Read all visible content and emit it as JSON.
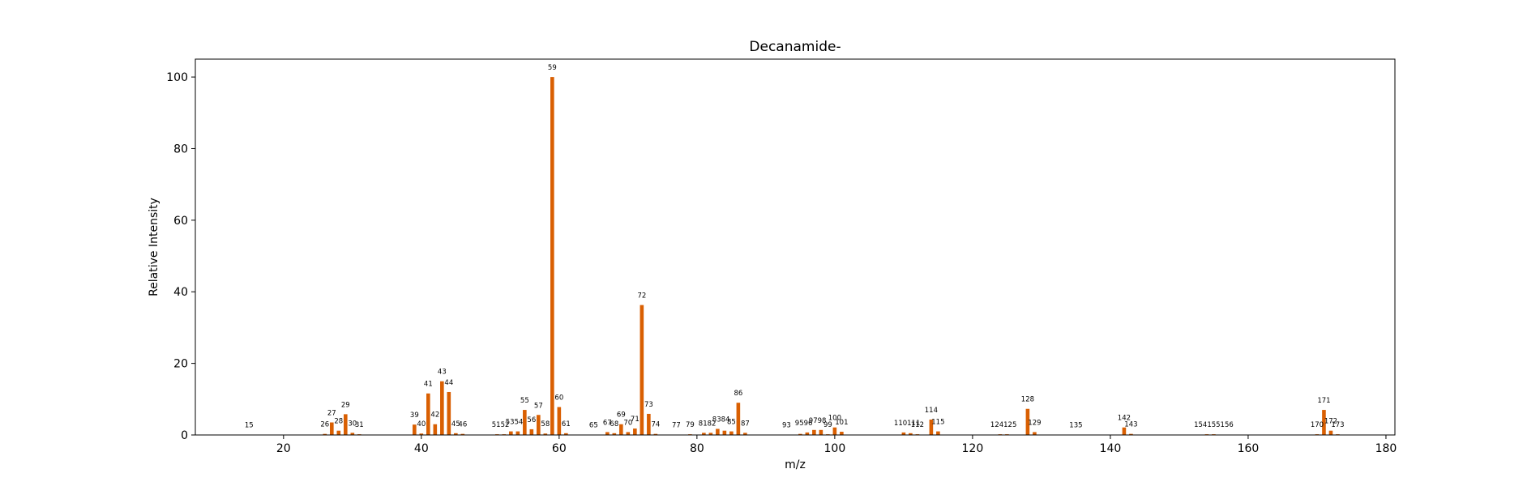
{
  "chart_data": {
    "type": "bar",
    "title": "Decanamide-",
    "xlabel": "m/z",
    "ylabel": "Relative Intensity",
    "xlim": [
      7.2,
      181.3
    ],
    "ylim": [
      0,
      105
    ],
    "xticks": [
      20,
      40,
      60,
      80,
      100,
      120,
      140,
      160,
      180
    ],
    "yticks": [
      0,
      20,
      40,
      60,
      80,
      100
    ],
    "bar_color": "#d95f02",
    "grid": false,
    "legend": "none",
    "peaks": [
      {
        "mz": 15,
        "intensity": 0.1
      },
      {
        "mz": 26,
        "intensity": 0.3
      },
      {
        "mz": 27,
        "intensity": 3.5
      },
      {
        "mz": 28,
        "intensity": 1.2
      },
      {
        "mz": 29,
        "intensity": 5.8
      },
      {
        "mz": 30,
        "intensity": 0.6
      },
      {
        "mz": 31,
        "intensity": 0.2
      },
      {
        "mz": 39,
        "intensity": 2.9
      },
      {
        "mz": 40,
        "intensity": 0.4
      },
      {
        "mz": 41,
        "intensity": 11.6
      },
      {
        "mz": 42,
        "intensity": 3.0
      },
      {
        "mz": 43,
        "intensity": 15.0
      },
      {
        "mz": 44,
        "intensity": 12.0
      },
      {
        "mz": 45,
        "intensity": 0.5
      },
      {
        "mz": 46,
        "intensity": 0.3
      },
      {
        "mz": 51,
        "intensity": 0.2
      },
      {
        "mz": 52,
        "intensity": 0.2
      },
      {
        "mz": 53,
        "intensity": 1.0
      },
      {
        "mz": 54,
        "intensity": 1.0
      },
      {
        "mz": 55,
        "intensity": 7.0
      },
      {
        "mz": 56,
        "intensity": 1.6
      },
      {
        "mz": 57,
        "intensity": 5.6
      },
      {
        "mz": 58,
        "intensity": 0.4
      },
      {
        "mz": 59,
        "intensity": 100
      },
      {
        "mz": 60,
        "intensity": 7.8
      },
      {
        "mz": 61,
        "intensity": 0.5
      },
      {
        "mz": 65,
        "intensity": 0.1
      },
      {
        "mz": 67,
        "intensity": 0.8
      },
      {
        "mz": 68,
        "intensity": 0.5
      },
      {
        "mz": 69,
        "intensity": 3.0
      },
      {
        "mz": 70,
        "intensity": 0.8
      },
      {
        "mz": 71,
        "intensity": 1.8
      },
      {
        "mz": 72,
        "intensity": 36.3
      },
      {
        "mz": 73,
        "intensity": 5.9
      },
      {
        "mz": 74,
        "intensity": 0.3
      },
      {
        "mz": 77,
        "intensity": 0.1
      },
      {
        "mz": 79,
        "intensity": 0.2
      },
      {
        "mz": 81,
        "intensity": 0.6
      },
      {
        "mz": 82,
        "intensity": 0.6
      },
      {
        "mz": 83,
        "intensity": 1.7
      },
      {
        "mz": 84,
        "intensity": 1.2
      },
      {
        "mz": 85,
        "intensity": 1.0
      },
      {
        "mz": 86,
        "intensity": 9.0
      },
      {
        "mz": 87,
        "intensity": 0.6
      },
      {
        "mz": 93,
        "intensity": 0.1
      },
      {
        "mz": 95,
        "intensity": 0.3
      },
      {
        "mz": 96,
        "intensity": 0.7
      },
      {
        "mz": 97,
        "intensity": 1.4
      },
      {
        "mz": 98,
        "intensity": 1.4
      },
      {
        "mz": 99,
        "intensity": 0.2
      },
      {
        "mz": 100,
        "intensity": 2.1
      },
      {
        "mz": 101,
        "intensity": 0.9
      },
      {
        "mz": 110,
        "intensity": 0.7
      },
      {
        "mz": 111,
        "intensity": 0.5
      },
      {
        "mz": 112,
        "intensity": 0.2
      },
      {
        "mz": 114,
        "intensity": 4.3
      },
      {
        "mz": 115,
        "intensity": 1.0
      },
      {
        "mz": 124,
        "intensity": 0.2
      },
      {
        "mz": 125,
        "intensity": 0.2
      },
      {
        "mz": 128,
        "intensity": 7.3
      },
      {
        "mz": 129,
        "intensity": 0.8
      },
      {
        "mz": 135,
        "intensity": 0.1
      },
      {
        "mz": 142,
        "intensity": 2.1
      },
      {
        "mz": 143,
        "intensity": 0.3
      },
      {
        "mz": 154,
        "intensity": 0.2
      },
      {
        "mz": 155,
        "intensity": 0.2
      },
      {
        "mz": 156,
        "intensity": 0.1
      },
      {
        "mz": 170,
        "intensity": 0.2
      },
      {
        "mz": 171,
        "intensity": 7.0
      },
      {
        "mz": 172,
        "intensity": 1.2
      },
      {
        "mz": 173,
        "intensity": 0.2
      }
    ],
    "peak_labels": [
      {
        "text": "15",
        "mz": 15,
        "intensity": 0.1
      },
      {
        "text": "26",
        "mz": 26,
        "intensity": 0.3
      },
      {
        "text": "27",
        "mz": 27,
        "intensity": 3.5
      },
      {
        "text": "28",
        "mz": 28,
        "intensity": 1.2
      },
      {
        "text": "29",
        "mz": 29,
        "intensity": 5.8
      },
      {
        "text": "30",
        "mz": 30,
        "intensity": 0.6
      },
      {
        "text": "31",
        "mz": 31,
        "intensity": 0.2
      },
      {
        "text": "39",
        "mz": 39,
        "intensity": 2.9
      },
      {
        "text": "40",
        "mz": 40,
        "intensity": 0.4
      },
      {
        "text": "41",
        "mz": 41,
        "intensity": 11.6
      },
      {
        "text": "42",
        "mz": 42,
        "intensity": 3.0
      },
      {
        "text": "43",
        "mz": 43,
        "intensity": 15.0
      },
      {
        "text": "44",
        "mz": 44,
        "intensity": 12.0
      },
      {
        "text": "45",
        "mz": 45,
        "intensity": 0.5
      },
      {
        "text": "46",
        "mz": 46,
        "intensity": 0.3
      },
      {
        "text": "5152",
        "mz": 51.5,
        "intensity": 0.2
      },
      {
        "text": "5354",
        "mz": 53.5,
        "intensity": 1.0
      },
      {
        "text": "55",
        "mz": 55,
        "intensity": 7.0
      },
      {
        "text": "56",
        "mz": 56,
        "intensity": 1.6
      },
      {
        "text": "57",
        "mz": 57,
        "intensity": 5.6
      },
      {
        "text": "58",
        "mz": 58,
        "intensity": 0.4
      },
      {
        "text": "59",
        "mz": 59,
        "intensity": 100
      },
      {
        "text": "60",
        "mz": 60,
        "intensity": 7.8
      },
      {
        "text": "61",
        "mz": 61,
        "intensity": 0.5
      },
      {
        "text": "65",
        "mz": 65,
        "intensity": 0.1
      },
      {
        "text": "67",
        "mz": 67,
        "intensity": 0.8
      },
      {
        "text": "68",
        "mz": 68,
        "intensity": 0.5
      },
      {
        "text": "69",
        "mz": 69,
        "intensity": 3.0
      },
      {
        "text": "70",
        "mz": 70,
        "intensity": 0.8
      },
      {
        "text": "71",
        "mz": 71,
        "intensity": 1.8
      },
      {
        "text": "72",
        "mz": 72,
        "intensity": 36.3
      },
      {
        "text": "73",
        "mz": 73,
        "intensity": 5.9
      },
      {
        "text": "74",
        "mz": 74,
        "intensity": 0.3
      },
      {
        "text": "77",
        "mz": 77,
        "intensity": 0.1
      },
      {
        "text": "79",
        "mz": 79,
        "intensity": 0.2
      },
      {
        "text": "8182",
        "mz": 81.5,
        "intensity": 0.6
      },
      {
        "text": "8384",
        "mz": 83.5,
        "intensity": 1.7
      },
      {
        "text": "85",
        "mz": 85,
        "intensity": 1.0
      },
      {
        "text": "86",
        "mz": 86,
        "intensity": 9.0
      },
      {
        "text": "87",
        "mz": 87,
        "intensity": 0.6
      },
      {
        "text": "93",
        "mz": 93,
        "intensity": 0.1
      },
      {
        "text": "9596",
        "mz": 95.5,
        "intensity": 0.7
      },
      {
        "text": "9798",
        "mz": 97.5,
        "intensity": 1.4
      },
      {
        "text": "99",
        "mz": 99,
        "intensity": 0.2
      },
      {
        "text": "100",
        "mz": 100,
        "intensity": 2.1
      },
      {
        "text": "101",
        "mz": 101,
        "intensity": 0.9
      },
      {
        "text": "110111",
        "mz": 110.5,
        "intensity": 0.7
      },
      {
        "text": "112",
        "mz": 112,
        "intensity": 0.2
      },
      {
        "text": "114",
        "mz": 114,
        "intensity": 4.3
      },
      {
        "text": "115",
        "mz": 115,
        "intensity": 1.0
      },
      {
        "text": "124125",
        "mz": 124.5,
        "intensity": 0.2
      },
      {
        "text": "128",
        "mz": 128,
        "intensity": 7.3
      },
      {
        "text": "129",
        "mz": 129,
        "intensity": 0.8
      },
      {
        "text": "135",
        "mz": 135,
        "intensity": 0.1
      },
      {
        "text": "142",
        "mz": 142,
        "intensity": 2.1
      },
      {
        "text": "143",
        "mz": 143,
        "intensity": 0.3
      },
      {
        "text": "154155156",
        "mz": 155,
        "intensity": 0.2
      },
      {
        "text": "170",
        "mz": 170,
        "intensity": 0.2
      },
      {
        "text": "171",
        "mz": 171,
        "intensity": 7.0
      },
      {
        "text": "172",
        "mz": 172,
        "intensity": 1.2
      },
      {
        "text": "173",
        "mz": 173,
        "intensity": 0.2
      }
    ]
  }
}
